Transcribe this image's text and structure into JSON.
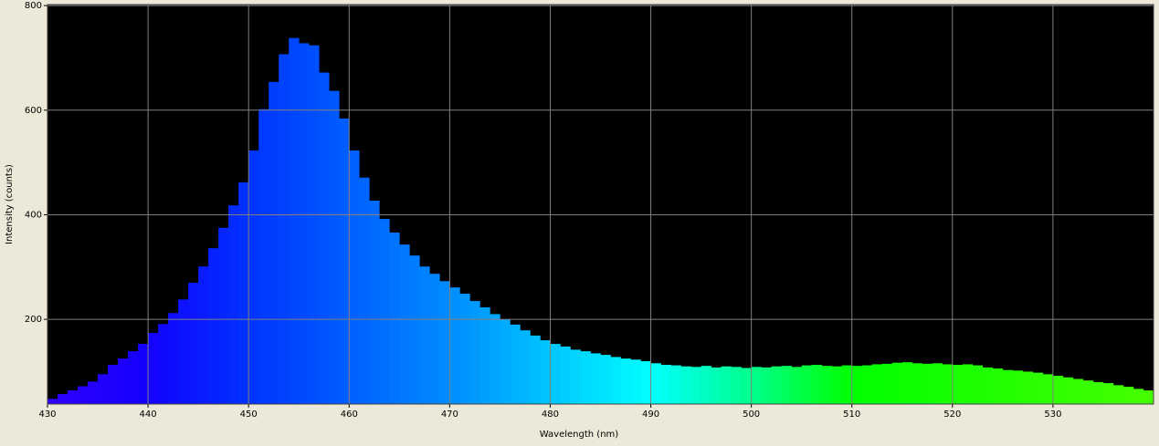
{
  "chart_data": {
    "type": "histogram",
    "xlabel": "Wavelength (nm)",
    "ylabel": "Intensity (counts)",
    "bins": [
      430,
      431,
      432,
      433,
      434,
      435,
      436,
      437,
      438,
      439,
      440,
      441,
      442,
      443,
      444,
      445,
      446,
      447,
      448,
      449,
      450,
      451,
      452,
      453,
      454,
      455,
      456,
      457,
      458,
      459,
      460,
      461,
      462,
      463,
      464,
      465,
      466,
      467,
      468,
      469,
      470,
      471,
      472,
      473,
      474,
      475,
      476,
      477,
      478,
      479,
      480,
      481,
      482,
      483,
      484,
      485,
      486,
      487,
      488,
      489,
      490,
      491,
      492,
      493,
      494,
      495,
      496,
      497,
      498,
      499,
      500,
      501,
      502,
      503,
      504,
      505,
      506,
      507,
      508,
      509,
      510,
      511,
      512,
      513,
      514,
      515,
      516,
      517,
      518,
      519,
      520,
      521,
      522,
      523,
      524,
      525,
      526,
      527,
      528,
      529,
      530,
      531,
      532,
      533,
      534,
      535,
      536,
      537,
      538,
      539,
      540
    ],
    "values": [
      48,
      57,
      64,
      72,
      81,
      95,
      113,
      125,
      139,
      153,
      174,
      191,
      212,
      238,
      270,
      301,
      336,
      375,
      418,
      462,
      523,
      602,
      654,
      707,
      738,
      728,
      724,
      672,
      637,
      584,
      523,
      471,
      427,
      392,
      366,
      343,
      322,
      301,
      287,
      273,
      261,
      249,
      235,
      223,
      210,
      200,
      190,
      179,
      169,
      160,
      153,
      148,
      142,
      139,
      135,
      132,
      128,
      125,
      123,
      120,
      116,
      113,
      112,
      110,
      109,
      111,
      108,
      110,
      109,
      107,
      109,
      108,
      110,
      111,
      109,
      112,
      113,
      111,
      110,
      112,
      111,
      112,
      114,
      115,
      117,
      118,
      116,
      115,
      116,
      114,
      113,
      114,
      112,
      108,
      106,
      103,
      102,
      100,
      98,
      95,
      92,
      89,
      86,
      83,
      80,
      78,
      74,
      71,
      67,
      64
    ],
    "xlim": [
      430,
      540
    ],
    "ylim": [
      38,
      802
    ],
    "xticks": [
      430,
      440,
      450,
      460,
      470,
      480,
      490,
      500,
      510,
      520,
      530
    ],
    "yticks": [
      200,
      400,
      600,
      800
    ],
    "grid": true,
    "background": "#000000"
  }
}
